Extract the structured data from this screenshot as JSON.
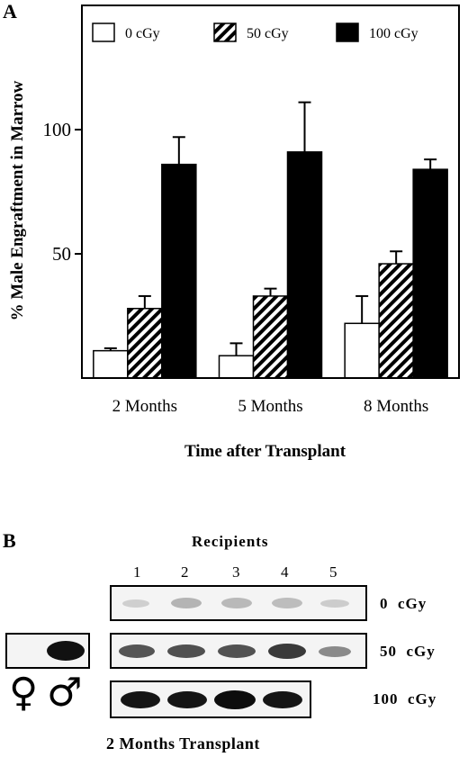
{
  "panel_a": {
    "letter": "A"
  },
  "panel_b": {
    "letter": "B",
    "recipients_label": "Recipients",
    "lanes": [
      "1",
      "2",
      "3",
      "4",
      "5"
    ],
    "dose_labels": [
      "0  cGy",
      "50  cGy",
      "100  cGy"
    ],
    "female_symbol": "♀",
    "male_symbol": "♂",
    "caption": "2 Months Transplant"
  },
  "chart_data": {
    "type": "bar",
    "title": "",
    "xlabel": "Time after Transplant",
    "ylabel": "% Male Engraftment in Marrow",
    "ylim": [
      0,
      150
    ],
    "yticks": [
      50,
      100
    ],
    "categories": [
      "2 Months",
      "5 Months",
      "8 Months"
    ],
    "legend_position": "top",
    "series": [
      {
        "name": "0 cGy",
        "fill": "white",
        "values": [
          11,
          9,
          22
        ],
        "errors": [
          1,
          5,
          11
        ]
      },
      {
        "name": "50 cGy",
        "fill": "hatch",
        "values": [
          28,
          33,
          46
        ],
        "errors": [
          5,
          3,
          5
        ]
      },
      {
        "name": "100 cGy",
        "fill": "black",
        "values": [
          86,
          91,
          84
        ],
        "errors": [
          11,
          20,
          4
        ]
      }
    ]
  }
}
